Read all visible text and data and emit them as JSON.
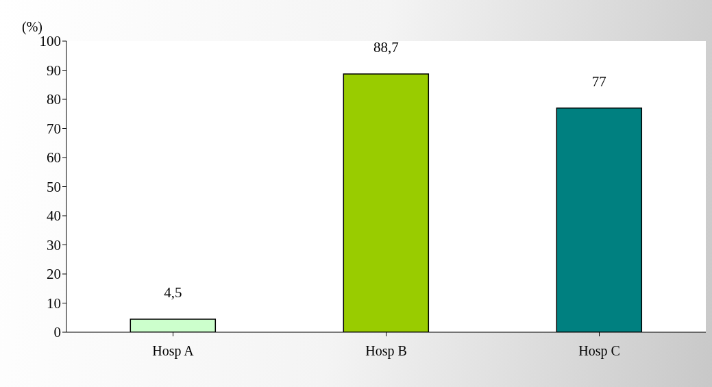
{
  "chart_data": {
    "type": "bar",
    "ylabel": "(%)",
    "categories": [
      "Hosp A",
      "Hosp B",
      "Hosp C"
    ],
    "values": [
      4.5,
      88.7,
      77
    ],
    "colors": [
      "#ccffcc",
      "#99cc00",
      "#008080"
    ],
    "value_labels": [
      "4,5",
      "88,7",
      "77"
    ],
    "ylim": [
      0,
      100
    ],
    "yticks": [
      0,
      10,
      20,
      30,
      40,
      50,
      60,
      70,
      80,
      90,
      100
    ],
    "grid": false,
    "legend": false
  }
}
